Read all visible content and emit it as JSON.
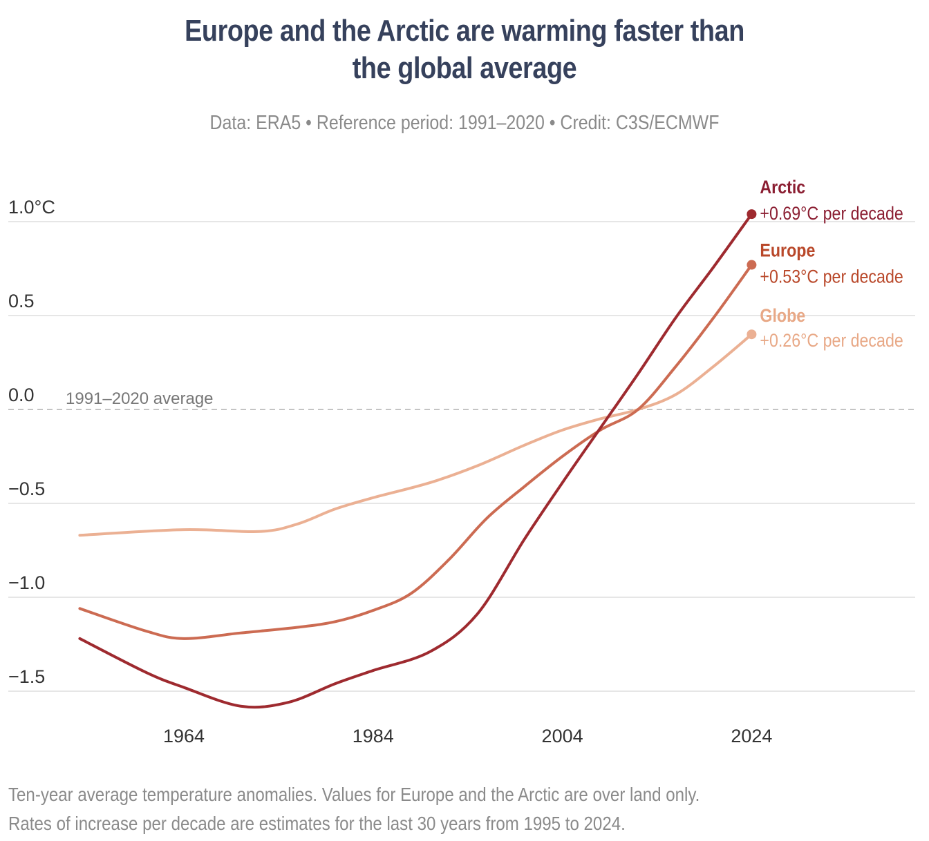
{
  "header": {
    "title_line1": "Europe and the Arctic are warming faster than",
    "title_line2": "the global average",
    "subtitle": "Data: ERA5 • Reference period: 1991–2020 • Credit: C3S/ECMWF"
  },
  "footnote": {
    "line1": "Ten-year average temperature anomalies. Values for Europe and the Arctic are over land only.",
    "line2": "Rates of increase per decade are estimates for the last 30 years from 1995 to 2024."
  },
  "chart_data": {
    "type": "line",
    "title": "Europe and the Arctic are warming faster than the global average",
    "subtitle": "Data: ERA5 • Reference period: 1991–2020 • Credit: C3S/ECMWF",
    "xlabel": "",
    "ylabel": "",
    "xlim": [
      1953,
      2042
    ],
    "ylim": [
      -1.6,
      1.1
    ],
    "x_ticks": [
      1964,
      1984,
      2004,
      2024
    ],
    "x_tick_labels": [
      "1964",
      "1984",
      "2004",
      "2024"
    ],
    "y_ticks": [
      1.0,
      0.5,
      0.0,
      -0.5,
      -1.0,
      -1.5
    ],
    "y_tick_labels": [
      "1.0°C",
      "0.5",
      "0.0",
      "−0.5",
      "−1.0",
      "−1.5"
    ],
    "grid": true,
    "reference_line": {
      "value": 0.0,
      "label": "1991–2020 average",
      "style": "dashed"
    },
    "legend": "direct-labels-right",
    "series": [
      {
        "name": "Arctic",
        "rate_label": "+0.69°C per decade",
        "color": "#9e2a2f",
        "label_color": "#8b1e32",
        "x": [
          1953,
          1960,
          1964,
          1970,
          1975,
          1980,
          1984,
          1990,
          1995,
          2000,
          2004,
          2008,
          2012,
          2016,
          2020,
          2024
        ],
        "values": [
          -1.22,
          -1.4,
          -1.48,
          -1.58,
          -1.56,
          -1.46,
          -1.39,
          -1.29,
          -1.09,
          -0.69,
          -0.39,
          -0.1,
          0.19,
          0.49,
          0.76,
          1.04
        ]
      },
      {
        "name": "Europe",
        "rate_label": "+0.53°C per decade",
        "color": "#cc6b52",
        "label_color": "#b9482a",
        "x": [
          1953,
          1960,
          1964,
          1970,
          1976,
          1980,
          1984,
          1988,
          1992,
          1996,
          2000,
          2004,
          2008,
          2012,
          2016,
          2020,
          2024
        ],
        "values": [
          -1.06,
          -1.18,
          -1.22,
          -1.19,
          -1.16,
          -1.13,
          -1.07,
          -0.98,
          -0.8,
          -0.58,
          -0.41,
          -0.25,
          -0.11,
          0.0,
          0.23,
          0.49,
          0.77
        ]
      },
      {
        "name": "Globe",
        "rate_label": "+0.26°C per decade",
        "color": "#ebb093",
        "label_color": "#e8a886",
        "x": [
          1953,
          1964,
          1972,
          1976,
          1980,
          1984,
          1990,
          1995,
          2000,
          2004,
          2008,
          2012,
          2016,
          2020,
          2024
        ],
        "values": [
          -0.67,
          -0.64,
          -0.65,
          -0.61,
          -0.53,
          -0.47,
          -0.39,
          -0.3,
          -0.19,
          -0.11,
          -0.05,
          0.0,
          0.08,
          0.23,
          0.4
        ]
      }
    ]
  }
}
